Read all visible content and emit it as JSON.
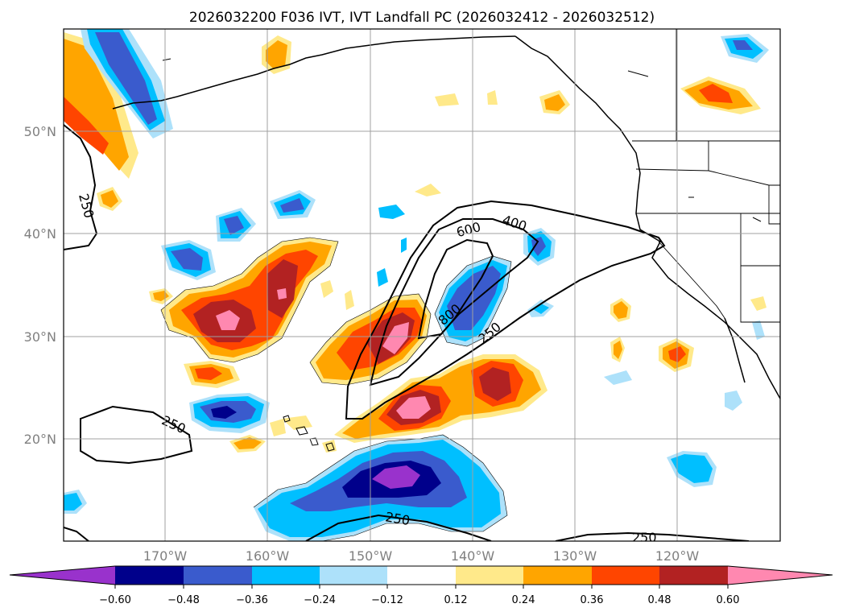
{
  "title": "2026032200 F036 IVT, IVT Landfall PC (2026032412 - 2026032512)",
  "axes": {
    "lat_labels": [
      "50°N",
      "40°N",
      "30°N",
      "20°N"
    ],
    "lon_labels": [
      "170°W",
      "160°W",
      "150°W",
      "140°W",
      "130°W",
      "120°W"
    ]
  },
  "contour_labels": [
    "250",
    "250",
    "600",
    "400",
    "800",
    "250",
    "250",
    "250"
  ],
  "colorbar": {
    "colors": [
      "#9932CC",
      "#00008B",
      "#3A5BCD",
      "#00BFFF",
      "#ADE1FA",
      "#FFFFFF",
      "#FFE98A",
      "#FFA500",
      "#FF4500",
      "#B22222",
      "#FF88B0"
    ],
    "tick_labels": [
      "−0.60",
      "−0.48",
      "−0.36",
      "−0.24",
      "−0.12",
      "0.12",
      "0.24",
      "0.36",
      "0.48",
      "0.60"
    ]
  }
}
